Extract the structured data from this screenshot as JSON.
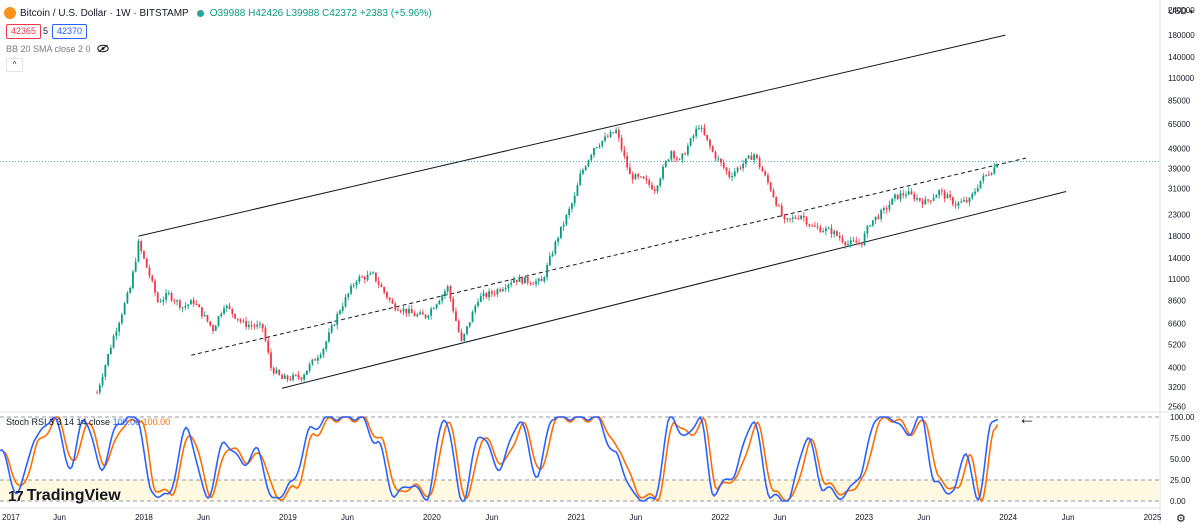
{
  "header": {
    "symbol_title": "Bitcoin / U.S. Dollar · 1W · BITSTAMP",
    "ohlc": "O39988 H42426 L39988 C42372 +2383 (+5.96%)",
    "bid": "42365",
    "spread": "5",
    "ask": "42370",
    "bb_label": "BB 20 SMA close 2 0",
    "currency": "USD",
    "collapse": "^"
  },
  "rsi_legend": {
    "label": "Stoch RSI 3 3 14 14 close",
    "k": "100.00",
    "d": "100.00"
  },
  "brand": {
    "logo_text": "TradingView",
    "logo_mark": "17"
  },
  "annotation_arrow": "←",
  "settings_icon": "⚙",
  "colors": {
    "up": "#089981",
    "down": "#f23645",
    "k_line": "#2962ff",
    "d_line": "#ff6d00",
    "band_fill": "#fff9e1",
    "bid_border": "#f23645",
    "ask_border": "#2962ff"
  },
  "chart_data": [
    {
      "type": "candlestick",
      "title": "Bitcoin / U.S. Dollar · 1W · BITSTAMP",
      "scale": "log",
      "ylim": [
        2400,
        260000
      ],
      "y_ticks": [
        2560,
        3200,
        4000,
        5200,
        6600,
        8600,
        11000,
        14000,
        18000,
        23000,
        31000,
        39000,
        49000,
        65000,
        85000,
        110000,
        140000,
        180000,
        240000
      ],
      "x_ticks": [
        "2017",
        "Jun",
        "2018",
        "Jun",
        "2019",
        "Jun",
        "2020",
        "Jun",
        "2021",
        "Jun",
        "2022",
        "Jun",
        "2023",
        "Jun",
        "2024",
        "Jun",
        "2025"
      ],
      "x_range": [
        "2017-01-01",
        "2025-01-20"
      ],
      "close_series": {
        "dates": [
          "2017-09-04",
          "2017-10-16",
          "2017-11-27",
          "2017-12-18",
          "2018-01-15",
          "2018-02-05",
          "2018-03-05",
          "2018-04-09",
          "2018-05-07",
          "2018-06-25",
          "2018-07-23",
          "2018-09-10",
          "2018-10-29",
          "2018-11-19",
          "2018-12-17",
          "2019-02-04",
          "2019-04-01",
          "2019-05-13",
          "2019-06-24",
          "2019-08-05",
          "2019-09-23",
          "2019-11-18",
          "2019-12-16",
          "2020-02-10",
          "2020-03-16",
          "2020-04-27",
          "2020-06-08",
          "2020-07-27",
          "2020-10-05",
          "2020-11-16",
          "2020-12-28",
          "2021-01-11",
          "2021-02-15",
          "2021-04-12",
          "2021-05-17",
          "2021-06-21",
          "2021-07-19",
          "2021-08-30",
          "2021-09-20",
          "2021-11-08",
          "2021-12-13",
          "2022-01-24",
          "2022-03-28",
          "2022-05-09",
          "2022-06-13",
          "2022-07-25",
          "2022-08-22",
          "2022-10-10",
          "2022-11-21",
          "2022-12-26",
          "2023-01-16",
          "2023-02-20",
          "2023-03-20",
          "2023-04-17",
          "2023-06-05",
          "2023-07-10",
          "2023-08-21",
          "2023-09-25",
          "2023-10-23",
          "2023-11-27",
          "2023-12-04"
        ],
        "values": [
          3000,
          5700,
          9900,
          16500,
          11500,
          8500,
          9200,
          8000,
          8500,
          6200,
          8200,
          6600,
          6300,
          4000,
          3500,
          3600,
          5000,
          7800,
          11000,
          11500,
          8200,
          7300,
          7200,
          10000,
          5300,
          8800,
          9500,
          11000,
          10600,
          18000,
          28000,
          36000,
          50000,
          60000,
          36000,
          34000,
          31000,
          48000,
          42000,
          64000,
          47000,
          36000,
          46000,
          31000,
          21000,
          23000,
          20000,
          19000,
          16500,
          16800,
          21000,
          24000,
          28000,
          29500,
          26500,
          30000,
          26000,
          27000,
          34000,
          39500,
          42372
        ]
      },
      "channel": {
        "upper": {
          "start": {
            "date": "2017-12-18",
            "value": 18000
          },
          "end": {
            "date": "2023-12-25",
            "value": 180000
          }
        },
        "middle": {
          "start": {
            "date": "2018-05-01",
            "value": 4600
          },
          "end": {
            "date": "2024-02-15",
            "value": 44000
          }
        },
        "lower": {
          "start": {
            "date": "2018-12-17",
            "value": 3150
          },
          "end": {
            "date": "2024-05-27",
            "value": 30000
          }
        }
      }
    },
    {
      "type": "line",
      "title": "Stoch RSI 3 3 14 14 close",
      "ylim": [
        0,
        100
      ],
      "y_ticks": [
        "100.00",
        "75.00",
        "50.00",
        "25.00",
        "0.00"
      ],
      "band": [
        20,
        80
      ],
      "series": [
        {
          "name": "K",
          "values": [
            {
              "date": "2017-01-01",
              "value": 60
            },
            {
              "date": "2017-02-15",
              "value": 10
            },
            {
              "date": "2017-04-01",
              "value": 75
            },
            {
              "date": "2017-05-15",
              "value": 100
            },
            {
              "date": "2017-07-01",
              "value": 40
            },
            {
              "date": "2017-08-01",
              "value": 100
            },
            {
              "date": "2017-09-15",
              "value": 40
            },
            {
              "date": "2017-11-01",
              "value": 95
            },
            {
              "date": "2017-12-15",
              "value": 100
            },
            {
              "date": "2018-01-20",
              "value": 10
            },
            {
              "date": "2018-03-01",
              "value": 5
            },
            {
              "date": "2018-04-20",
              "value": 85
            },
            {
              "date": "2018-06-10",
              "value": 5
            },
            {
              "date": "2018-07-25",
              "value": 70
            },
            {
              "date": "2018-09-10",
              "value": 45
            },
            {
              "date": "2018-10-15",
              "value": 60
            },
            {
              "date": "2018-11-25",
              "value": 0
            },
            {
              "date": "2019-01-10",
              "value": 20
            },
            {
              "date": "2019-03-01",
              "value": 85
            },
            {
              "date": "2019-04-15",
              "value": 100
            },
            {
              "date": "2019-07-01",
              "value": 100
            },
            {
              "date": "2019-08-15",
              "value": 70
            },
            {
              "date": "2019-09-30",
              "value": 5
            },
            {
              "date": "2019-11-01",
              "value": 20
            },
            {
              "date": "2019-12-20",
              "value": 5
            },
            {
              "date": "2020-02-01",
              "value": 100
            },
            {
              "date": "2020-03-20",
              "value": 0
            },
            {
              "date": "2020-05-01",
              "value": 80
            },
            {
              "date": "2020-06-20",
              "value": 40
            },
            {
              "date": "2020-08-10",
              "value": 95
            },
            {
              "date": "2020-09-25",
              "value": 30
            },
            {
              "date": "2020-11-01",
              "value": 100
            },
            {
              "date": "2021-02-20",
              "value": 100
            },
            {
              "date": "2021-04-10",
              "value": 55
            },
            {
              "date": "2021-06-01",
              "value": 5
            },
            {
              "date": "2021-07-15",
              "value": 0
            },
            {
              "date": "2021-08-30",
              "value": 100
            },
            {
              "date": "2021-10-05",
              "value": 75
            },
            {
              "date": "2021-11-10",
              "value": 100
            },
            {
              "date": "2021-12-15",
              "value": 10
            },
            {
              "date": "2022-02-01",
              "value": 30
            },
            {
              "date": "2022-03-25",
              "value": 95
            },
            {
              "date": "2022-05-10",
              "value": 5
            },
            {
              "date": "2022-06-20",
              "value": 0
            },
            {
              "date": "2022-08-10",
              "value": 75
            },
            {
              "date": "2022-09-20",
              "value": 15
            },
            {
              "date": "2022-11-10",
              "value": 5
            },
            {
              "date": "2022-12-20",
              "value": 30
            },
            {
              "date": "2023-02-01",
              "value": 100
            },
            {
              "date": "2023-03-10",
              "value": 100
            },
            {
              "date": "2023-04-20",
              "value": 80
            },
            {
              "date": "2023-05-25",
              "value": 100
            },
            {
              "date": "2023-07-01",
              "value": 20
            },
            {
              "date": "2023-08-15",
              "value": 10
            },
            {
              "date": "2023-09-15",
              "value": 60
            },
            {
              "date": "2023-10-15",
              "value": 0
            },
            {
              "date": "2023-11-20",
              "value": 90
            },
            {
              "date": "2023-12-10",
              "value": 100
            }
          ]
        },
        {
          "name": "D",
          "values": [
            {
              "date": "2017-01-10",
              "value": 55
            },
            {
              "date": "2017-02-25",
              "value": 15
            },
            {
              "date": "2017-04-10",
              "value": 70
            },
            {
              "date": "2017-05-25",
              "value": 98
            },
            {
              "date": "2017-07-10",
              "value": 45
            },
            {
              "date": "2017-08-10",
              "value": 95
            },
            {
              "date": "2017-09-25",
              "value": 45
            },
            {
              "date": "2017-11-10",
              "value": 90
            },
            {
              "date": "2017-12-25",
              "value": 98
            },
            {
              "date": "2018-01-30",
              "value": 15
            },
            {
              "date": "2018-03-10",
              "value": 8
            },
            {
              "date": "2018-04-30",
              "value": 80
            },
            {
              "date": "2018-06-20",
              "value": 8
            },
            {
              "date": "2018-08-05",
              "value": 65
            },
            {
              "date": "2018-09-20",
              "value": 48
            },
            {
              "date": "2018-10-25",
              "value": 55
            },
            {
              "date": "2018-12-05",
              "value": 3
            },
            {
              "date": "2019-01-20",
              "value": 15
            },
            {
              "date": "2019-03-10",
              "value": 80
            },
            {
              "date": "2019-04-25",
              "value": 98
            },
            {
              "date": "2019-07-10",
              "value": 98
            },
            {
              "date": "2019-08-25",
              "value": 72
            },
            {
              "date": "2019-10-10",
              "value": 8
            },
            {
              "date": "2019-11-10",
              "value": 18
            },
            {
              "date": "2019-12-30",
              "value": 8
            },
            {
              "date": "2020-02-10",
              "value": 95
            },
            {
              "date": "2020-03-30",
              "value": 3
            },
            {
              "date": "2020-05-10",
              "value": 75
            },
            {
              "date": "2020-06-30",
              "value": 45
            },
            {
              "date": "2020-08-20",
              "value": 90
            },
            {
              "date": "2020-10-05",
              "value": 35
            },
            {
              "date": "2020-11-10",
              "value": 98
            },
            {
              "date": "2021-03-01",
              "value": 98
            },
            {
              "date": "2021-04-20",
              "value": 60
            },
            {
              "date": "2021-06-10",
              "value": 8
            },
            {
              "date": "2021-07-25",
              "value": 3
            },
            {
              "date": "2021-09-08",
              "value": 95
            },
            {
              "date": "2021-10-15",
              "value": 78
            },
            {
              "date": "2021-11-20",
              "value": 95
            },
            {
              "date": "2021-12-25",
              "value": 15
            },
            {
              "date": "2022-02-10",
              "value": 28
            },
            {
              "date": "2022-04-05",
              "value": 90
            },
            {
              "date": "2022-05-20",
              "value": 8
            },
            {
              "date": "2022-06-30",
              "value": 3
            },
            {
              "date": "2022-08-20",
              "value": 70
            },
            {
              "date": "2022-09-30",
              "value": 18
            },
            {
              "date": "2022-11-20",
              "value": 8
            },
            {
              "date": "2022-12-30",
              "value": 28
            },
            {
              "date": "2023-02-10",
              "value": 95
            },
            {
              "date": "2023-03-20",
              "value": 98
            },
            {
              "date": "2023-04-30",
              "value": 82
            },
            {
              "date": "2023-06-05",
              "value": 95
            },
            {
              "date": "2023-07-10",
              "value": 25
            },
            {
              "date": "2023-08-25",
              "value": 12
            },
            {
              "date": "2023-09-25",
              "value": 55
            },
            {
              "date": "2023-10-25",
              "value": 3
            },
            {
              "date": "2023-11-30",
              "value": 85
            },
            {
              "date": "2023-12-10",
              "value": 100
            }
          ]
        }
      ]
    }
  ]
}
